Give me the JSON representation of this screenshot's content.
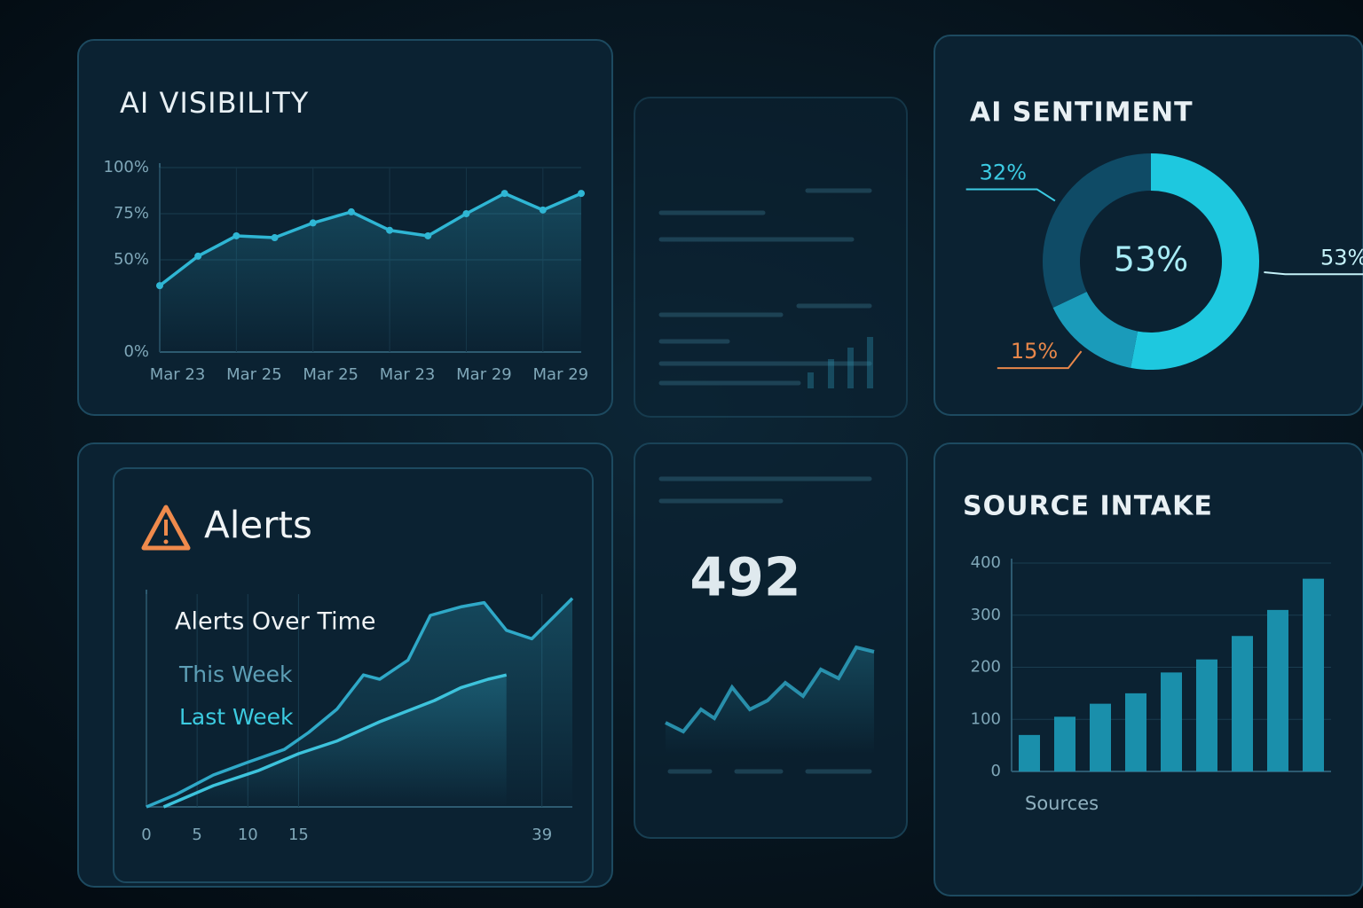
{
  "chart_data": [
    {
      "type": "line",
      "title": "AI VISIBILITY",
      "categories": [
        "Mar 23",
        null,
        "Mar 25",
        null,
        "Mar 25",
        null,
        "Mar 23",
        null,
        "Mar 29",
        null,
        "Mar 29",
        null
      ],
      "values": [
        36,
        52,
        63,
        62,
        70,
        76,
        66,
        63,
        75,
        86,
        77,
        86
      ],
      "color": "#2fb6d4",
      "ylim": [
        0,
        100
      ],
      "yticks": [
        {
          "value": 0,
          "label": "0%"
        },
        {
          "value": 50,
          "label": "50%"
        },
        {
          "value": 75,
          "label": "75%"
        },
        {
          "value": 100,
          "label": "100%"
        }
      ],
      "grid": true
    },
    {
      "type": "pie",
      "title": "AI SENTIMENT",
      "categories": [
        null,
        null,
        null
      ],
      "values": [
        53,
        15,
        32
      ],
      "value_labels": [
        "53%",
        "15%",
        "32%"
      ],
      "colors": [
        "#1ec8df",
        "#1a9bba",
        "#0f4b66"
      ],
      "label_colors": [
        "#c4f1f8",
        "#e8874a",
        "#3ccbe3"
      ]
    },
    {
      "type": "line",
      "title": "Alerts",
      "subtitle": "Alerts Over Time",
      "series": [
        {
          "name": "This Week",
          "color": "#2fa9c8",
          "legend_color": "#5d9fb6",
          "x": [
            0,
            3,
            6.6,
            10,
            13.6,
            16,
            18.8,
            21.4,
            23,
            25.8,
            28,
            31,
            33.3,
            35.5,
            38,
            42
          ],
          "values": [
            0,
            6,
            15,
            21,
            27,
            35,
            46,
            62,
            60,
            69,
            90,
            94,
            96,
            83,
            79,
            98
          ]
        },
        {
          "name": "Last Week",
          "color": "#3dc3dc",
          "legend_color": "#3ccbe0",
          "x": [
            1.7,
            6.6,
            11,
            15,
            18.8,
            23,
            28.4,
            31,
            33.7,
            35.5
          ],
          "values": [
            0,
            10,
            17,
            25,
            31,
            40,
            50,
            56,
            60,
            62
          ]
        }
      ],
      "xlim": [
        0,
        42
      ],
      "xticks": [
        0,
        5,
        10,
        15,
        39
      ],
      "ylim": [
        0,
        100
      ],
      "grid": true
    },
    {
      "type": "bar",
      "title": "SOURCE INTAKE",
      "x_label": "Sources",
      "categories": [
        null,
        null,
        null,
        null,
        null,
        null,
        null,
        null,
        null
      ],
      "values": [
        70,
        105,
        130,
        150,
        190,
        215,
        260,
        310,
        370
      ],
      "color": "#1a8fab",
      "ylim": [
        0,
        400
      ],
      "yticks": [
        0,
        100,
        200,
        300,
        400
      ],
      "grid": true
    }
  ],
  "kpi": {
    "value": "492"
  }
}
